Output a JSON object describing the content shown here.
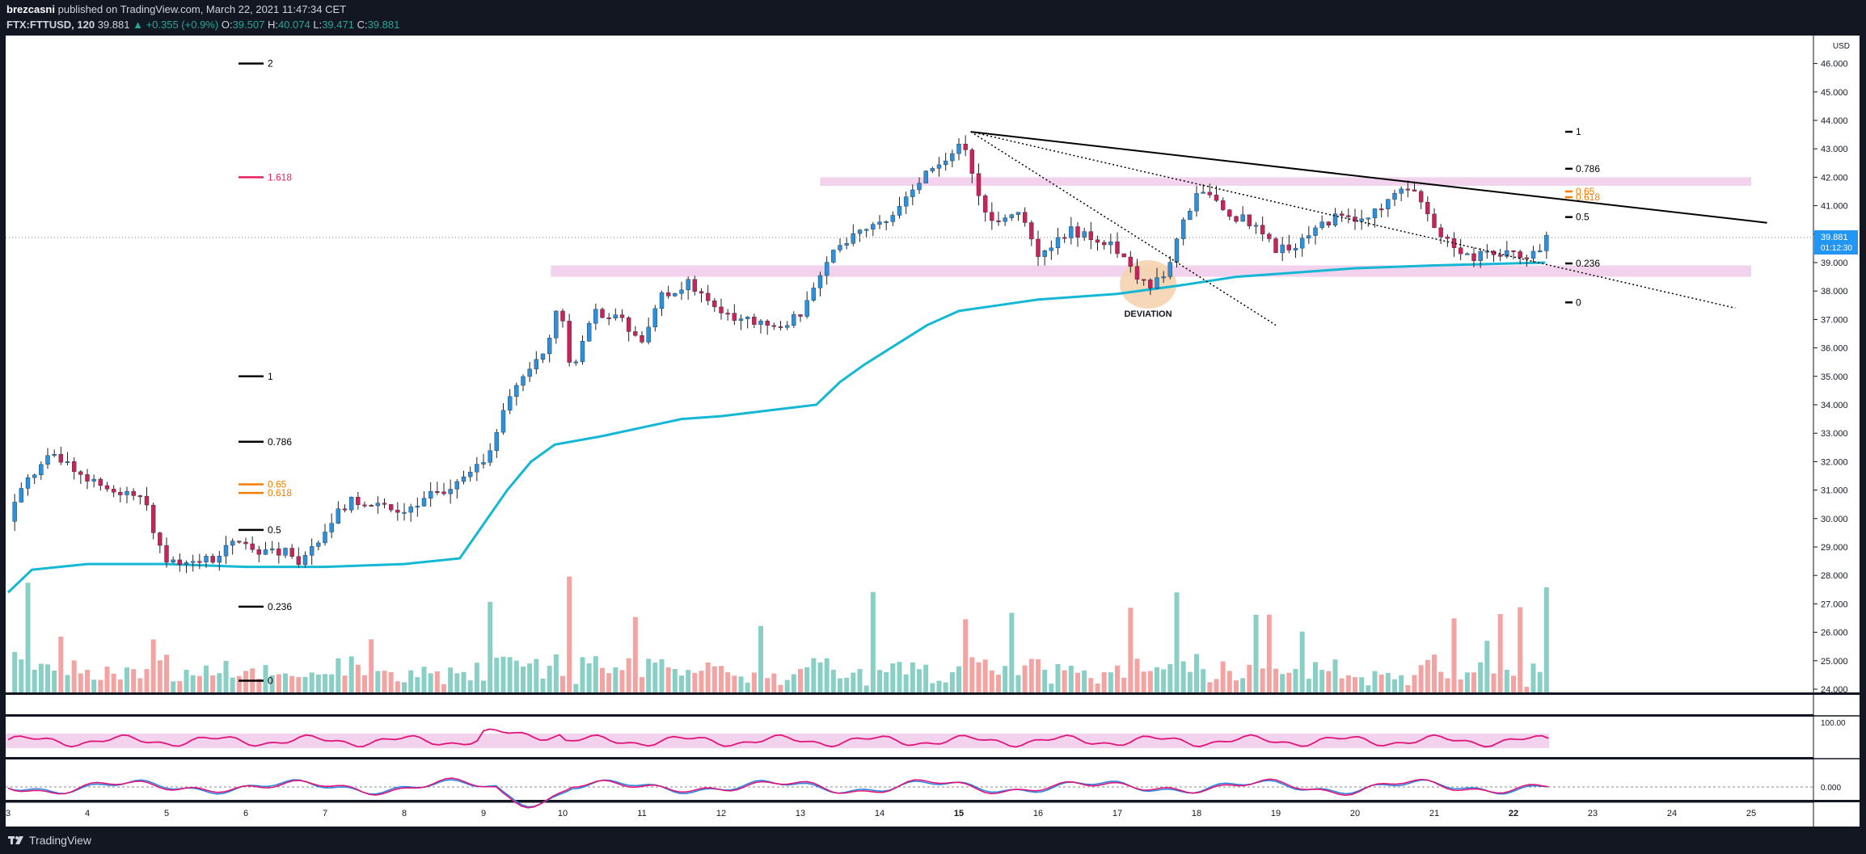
{
  "header": {
    "author": "brezcasni",
    "published": "published on TradingView.com, March 22, 2021 11:47:34 CET",
    "symbol": "FTX:FTTUSD, 120",
    "last": "39.881",
    "change": "▲ +0.355 (+0.9%)",
    "o_label": "O:",
    "o": "39.507",
    "h_label": "H:",
    "h": "40.074",
    "l_label": "L:",
    "l": "39.471",
    "c_label": "C:",
    "c": "39.881"
  },
  "footer": {
    "brand": "TradingView"
  },
  "colors": {
    "background": "#ffffff",
    "up": "#2f8fd8",
    "down": "#c8245a",
    "vol_up": "#89cfc6",
    "vol_down": "#f4a3a3",
    "vwap": "#14b8d4",
    "zone": "#f2d2ec",
    "rsi": "#e0157a",
    "stoch_k": "#2d83e0",
    "stoch_d": "#e0157a",
    "fib_orange": "#f57c00",
    "fib_red": "#e91e63",
    "trend": "#000000"
  },
  "chart_data": {
    "type": "candlestick",
    "title": "FTX:FTTUSD, 120",
    "currency": "USD",
    "ylim": [
      23.8,
      46.5
    ],
    "price_ticks": [
      "24.000",
      "25.000",
      "26.000",
      "27.000",
      "28.000",
      "29.000",
      "30.000",
      "31.000",
      "32.000",
      "33.000",
      "34.000",
      "35.000",
      "36.000",
      "37.000",
      "38.000",
      "39.000",
      "40.000",
      "41.000",
      "42.000",
      "43.000",
      "44.000",
      "45.000",
      "46.000"
    ],
    "date_ticks": [
      "3",
      "4",
      "5",
      "6",
      "7",
      "8",
      "9",
      "10",
      "11",
      "12",
      "13",
      "14",
      "15",
      "16",
      "17",
      "18",
      "19",
      "20",
      "21",
      "22",
      "23",
      "24",
      "25"
    ],
    "bold_dates": [
      "15",
      "22"
    ],
    "last_price": "39.881",
    "countdown": "01:12:30",
    "price_path": [
      [
        3.0,
        29.9
      ],
      [
        3.2,
        31.2
      ],
      [
        3.5,
        32.2
      ],
      [
        3.8,
        31.9
      ],
      [
        4.0,
        31.3
      ],
      [
        4.3,
        31.0
      ],
      [
        4.7,
        30.9
      ],
      [
        4.85,
        29.3
      ],
      [
        5.0,
        28.5
      ],
      [
        5.3,
        28.5
      ],
      [
        5.6,
        28.6
      ],
      [
        5.9,
        29.3
      ],
      [
        6.2,
        28.8
      ],
      [
        6.5,
        28.8
      ],
      [
        6.7,
        28.3
      ],
      [
        7.0,
        29.7
      ],
      [
        7.3,
        30.6
      ],
      [
        7.7,
        30.5
      ],
      [
        8.0,
        30.3
      ],
      [
        8.3,
        30.8
      ],
      [
        8.6,
        31.0
      ],
      [
        8.9,
        31.7
      ],
      [
        9.1,
        32.5
      ],
      [
        9.3,
        34.1
      ],
      [
        9.5,
        35.0
      ],
      [
        9.7,
        35.8
      ],
      [
        9.85,
        36.3
      ],
      [
        9.95,
        37.8
      ],
      [
        10.1,
        35.3
      ],
      [
        10.25,
        36.1
      ],
      [
        10.4,
        37.2
      ],
      [
        10.6,
        37.2
      ],
      [
        10.8,
        36.8
      ],
      [
        11.0,
        36.1
      ],
      [
        11.2,
        37.7
      ],
      [
        11.4,
        38.0
      ],
      [
        11.6,
        38.3
      ],
      [
        11.8,
        37.8
      ],
      [
        12.0,
        37.4
      ],
      [
        12.2,
        36.9
      ],
      [
        12.4,
        37.0
      ],
      [
        12.6,
        36.6
      ],
      [
        12.8,
        36.9
      ],
      [
        13.0,
        37.1
      ],
      [
        13.2,
        38.4
      ],
      [
        13.4,
        39.3
      ],
      [
        13.6,
        39.9
      ],
      [
        13.8,
        40.3
      ],
      [
        14.0,
        40.4
      ],
      [
        14.2,
        40.9
      ],
      [
        14.4,
        41.5
      ],
      [
        14.6,
        42.2
      ],
      [
        14.8,
        42.4
      ],
      [
        15.05,
        43.3
      ],
      [
        15.2,
        41.9
      ],
      [
        15.4,
        40.3
      ],
      [
        15.6,
        40.7
      ],
      [
        15.8,
        40.8
      ],
      [
        16.0,
        39.1
      ],
      [
        16.2,
        39.6
      ],
      [
        16.4,
        40.1
      ],
      [
        16.6,
        40.0
      ],
      [
        16.8,
        39.8
      ],
      [
        17.0,
        39.4
      ],
      [
        17.2,
        38.7
      ],
      [
        17.4,
        38.1
      ],
      [
        17.6,
        38.5
      ],
      [
        17.8,
        40.2
      ],
      [
        18.0,
        41.5
      ],
      [
        18.2,
        41.3
      ],
      [
        18.4,
        40.7
      ],
      [
        18.6,
        40.5
      ],
      [
        18.8,
        40.1
      ],
      [
        19.0,
        39.5
      ],
      [
        19.2,
        39.6
      ],
      [
        19.4,
        39.9
      ],
      [
        19.6,
        40.4
      ],
      [
        19.8,
        40.6
      ],
      [
        20.0,
        40.5
      ],
      [
        20.2,
        40.6
      ],
      [
        20.4,
        41.2
      ],
      [
        20.6,
        41.5
      ],
      [
        20.8,
        41.3
      ],
      [
        21.0,
        40.2
      ],
      [
        21.2,
        39.6
      ],
      [
        21.35,
        39.1
      ],
      [
        21.5,
        39.2
      ],
      [
        21.7,
        39.3
      ],
      [
        21.9,
        39.4
      ],
      [
        22.1,
        39.2
      ],
      [
        22.3,
        39.5
      ],
      [
        22.45,
        39.88
      ]
    ],
    "vwap": [
      [
        3.0,
        27.4
      ],
      [
        3.3,
        28.2
      ],
      [
        4.0,
        28.4
      ],
      [
        5.0,
        28.4
      ],
      [
        6.0,
        28.3
      ],
      [
        7.0,
        28.3
      ],
      [
        8.0,
        28.4
      ],
      [
        8.7,
        28.6
      ],
      [
        9.0,
        29.8
      ],
      [
        9.3,
        31.0
      ],
      [
        9.6,
        32.0
      ],
      [
        9.9,
        32.6
      ],
      [
        10.5,
        32.9
      ],
      [
        11.0,
        33.2
      ],
      [
        11.5,
        33.5
      ],
      [
        12.0,
        33.6
      ],
      [
        12.6,
        33.8
      ],
      [
        13.2,
        34.0
      ],
      [
        13.5,
        34.8
      ],
      [
        13.8,
        35.4
      ],
      [
        14.2,
        36.1
      ],
      [
        14.6,
        36.8
      ],
      [
        15.0,
        37.3
      ],
      [
        15.5,
        37.5
      ],
      [
        16.0,
        37.7
      ],
      [
        17.0,
        37.9
      ],
      [
        17.8,
        38.2
      ],
      [
        18.5,
        38.5
      ],
      [
        19.0,
        38.6
      ],
      [
        20.0,
        38.8
      ],
      [
        21.0,
        38.9
      ],
      [
        22.4,
        39.0
      ]
    ],
    "zones": [
      {
        "x1": 9.85,
        "x2": 25.0,
        "lo": 38.5,
        "hi": 38.9
      },
      {
        "x1": 13.25,
        "x2": 25.0,
        "lo": 41.7,
        "hi": 42.0
      }
    ],
    "annotation": "DEVIATION",
    "fib_left": [
      {
        "label": "2",
        "price": 46.0,
        "level": "2"
      },
      {
        "label": "1.618",
        "price": 42.0,
        "level": "1.618"
      },
      {
        "label": "1",
        "price": 35.0,
        "level": "1"
      },
      {
        "label": "0.786",
        "price": 32.7,
        "level": "0.786"
      },
      {
        "label": "0.65",
        "price": 31.2,
        "level": "0.65"
      },
      {
        "label": "0.618",
        "price": 30.9,
        "level": "0.618"
      },
      {
        "label": "0.5",
        "price": 29.6,
        "level": "0.5"
      },
      {
        "label": "0.236",
        "price": 26.9,
        "level": "0.236"
      },
      {
        "label": "0",
        "price": 24.3,
        "level": "0"
      }
    ],
    "fib_right": [
      {
        "label": "1",
        "price": 43.6,
        "level": "1"
      },
      {
        "label": "0.786",
        "price": 42.3,
        "level": "0.786"
      },
      {
        "label": "0.65",
        "price": 41.5,
        "level": "0.65"
      },
      {
        "label": "0.618",
        "price": 41.3,
        "level": "0.618"
      },
      {
        "label": "0.5",
        "price": 40.6,
        "level": "0.5"
      },
      {
        "label": "0.236",
        "price": 38.97,
        "level": "0.236"
      },
      {
        "label": "0",
        "price": 37.6,
        "level": "0"
      }
    ],
    "rsi_ticks": [
      "100.00"
    ],
    "stoch_ticks": [
      "0.000"
    ]
  }
}
